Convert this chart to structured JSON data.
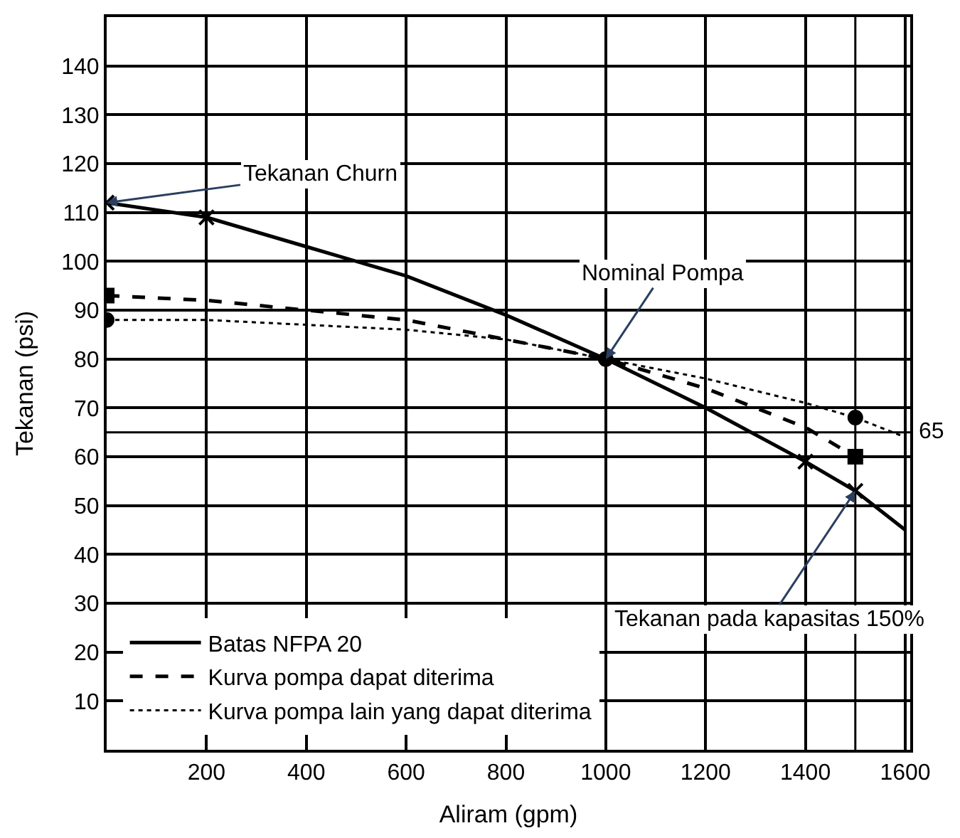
{
  "chart_data": {
    "type": "line",
    "xlabel": "Aliram (gpm)",
    "ylabel": "Tekanan (psi)",
    "xlim": [
      0,
      1610
    ],
    "xticks": [
      200,
      400,
      600,
      800,
      1000,
      1200,
      1400,
      1600
    ],
    "ylim": [
      0,
      150
    ],
    "yticks": [
      10,
      20,
      30,
      40,
      50,
      60,
      70,
      80,
      90,
      100,
      110,
      120,
      130,
      140
    ],
    "grid": true,
    "legend": "bottom left",
    "series": [
      {
        "name": "Batas NFPA 20",
        "color": "#000000",
        "line_style": "solid",
        "marker": "none",
        "x": [
          0,
          200,
          400,
          600,
          800,
          1000,
          1200,
          1400,
          1500,
          1600
        ],
        "values": [
          112,
          109,
          103,
          97,
          89,
          80,
          70,
          59,
          53,
          45
        ]
      },
      {
        "name": "Kurva pompa dapat diterima",
        "color": "#000000",
        "line_style": "dashed",
        "marker": "none",
        "x": [
          0,
          200,
          400,
          600,
          800,
          1000,
          1200,
          1400,
          1500
        ],
        "values": [
          93,
          92,
          90,
          88,
          84,
          80,
          74,
          66,
          60
        ]
      },
      {
        "name": "Kurva pompa lain yang dapat diterima",
        "color": "#000000",
        "line_style": "dotted",
        "marker": "none",
        "x": [
          0,
          200,
          400,
          600,
          800,
          1000,
          1200,
          1400,
          1500,
          1600
        ],
        "values": [
          88,
          88,
          87,
          86,
          84,
          80,
          76,
          71,
          68,
          64
        ]
      },
      {
        "type": "scatter",
        "color": "#000000",
        "marker": "cross",
        "x": [
          0,
          200,
          1400,
          1500
        ],
        "values": [
          112,
          109,
          59,
          53
        ]
      },
      {
        "type": "scatter",
        "color": "#000000",
        "marker": "square",
        "x": [
          0,
          1500
        ],
        "values": [
          93,
          60
        ]
      },
      {
        "type": "scatter",
        "color": "#000000",
        "marker": "circle",
        "x": [
          0,
          1000,
          1500
        ],
        "values": [
          88,
          80,
          68
        ]
      }
    ],
    "ref_lines": [
      {
        "axis": "y",
        "value": 65,
        "label": "65",
        "color": "#000000"
      },
      {
        "axis": "x",
        "value": 1500,
        "color": "#000000"
      }
    ],
    "annotations": [
      {
        "text": "Tekanan Churn",
        "x": 0,
        "y": 112
      },
      {
        "text": "Nominal Pompa",
        "x": 1000,
        "y": 80
      },
      {
        "text": "Tekanan pada kapasitas 150%",
        "x": 1500,
        "y": 53
      }
    ]
  }
}
